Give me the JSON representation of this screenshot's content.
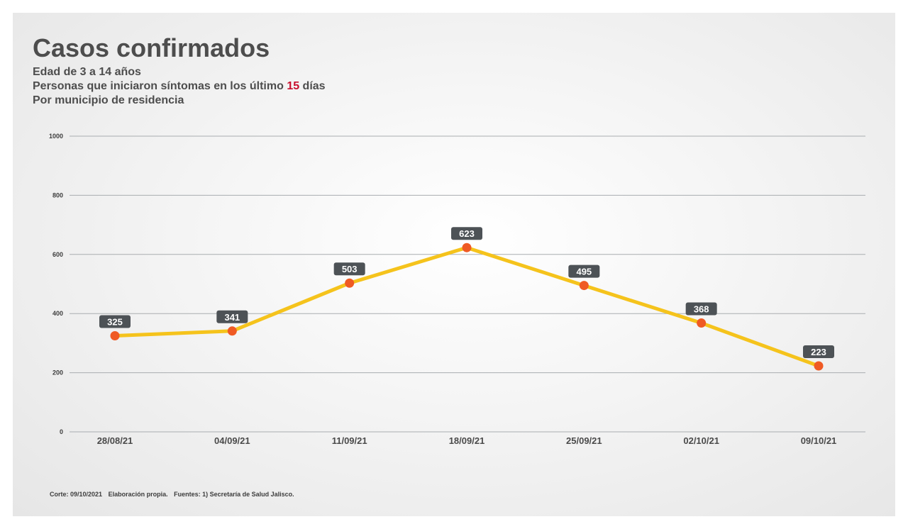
{
  "header": {
    "title": "Casos confirmados",
    "subtitle_1": "Edad de 3 a 14 años",
    "subtitle_2_before": "Personas que iniciaron síntomas en los último ",
    "subtitle_2_highlight": "15",
    "subtitle_2_after": " días",
    "subtitle_3": "Por municipio de residencia"
  },
  "footer": {
    "corte": "Corte: 09/10/2021",
    "elaboracion": "Elaboración propia.",
    "fuentes": "Fuentes:  1) Secretaría de Salud Jalisco."
  },
  "colors": {
    "line": "#f5c31c",
    "marker": "#ef5a24",
    "label_bg": "#4d5256",
    "grid": "#a9adb0",
    "highlight": "#c8102e"
  },
  "chart_data": {
    "type": "line",
    "title": "Casos confirmados",
    "categories": [
      "28/08/21",
      "04/09/21",
      "11/09/21",
      "18/09/21",
      "25/09/21",
      "02/10/21",
      "09/10/21"
    ],
    "values": [
      325,
      341,
      503,
      623,
      495,
      368,
      223
    ],
    "yticks": [
      0,
      200,
      400,
      600,
      800,
      1000
    ],
    "ylim": [
      0,
      1000
    ],
    "grid": true,
    "data_labels": true
  }
}
